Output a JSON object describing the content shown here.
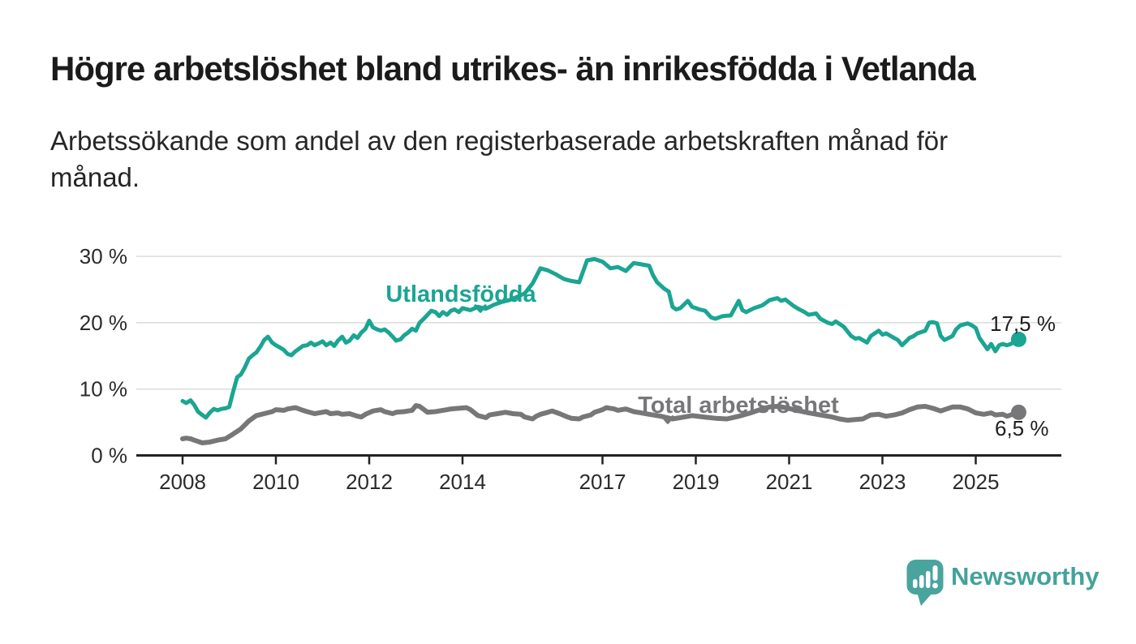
{
  "header": {
    "title": "Högre arbetslöshet bland utrikes- än inrikesfödda i Vetlanda",
    "subtitle": "Arbetssökande som andel av den registerbaserade arbetskraften månad för månad."
  },
  "chart_data": {
    "type": "line",
    "title": "Högre arbetslöshet bland utrikes- än inrikesfödda i Vetlanda",
    "xlabel": "",
    "ylabel": "",
    "unit": "%",
    "grid": true,
    "legend_position": "inline-labels",
    "x_range": [
      2008,
      2025.92
    ],
    "ylim": [
      0,
      32
    ],
    "x_ticks": [
      "2008",
      "2010",
      "2012",
      "2014",
      "2017",
      "2019",
      "2021",
      "2023",
      "2025"
    ],
    "x_tick_years": [
      2008,
      2010,
      2012,
      2014,
      2017,
      2019,
      2021,
      2023,
      2025
    ],
    "y_ticks": [
      "0 %",
      "10 %",
      "20 %",
      "30 %"
    ],
    "y_tick_values": [
      0,
      10,
      20,
      30
    ],
    "series": [
      {
        "name": "Utlandsfödda",
        "color": "#1ba593",
        "final_value": 17.5,
        "final_label": "17,5 %",
        "points": [
          [
            2008.0,
            8.2
          ],
          [
            2008.08,
            7.9
          ],
          [
            2008.17,
            8.3
          ],
          [
            2008.25,
            7.6
          ],
          [
            2008.33,
            6.6
          ],
          [
            2008.42,
            6.1
          ],
          [
            2008.5,
            5.7
          ],
          [
            2008.58,
            6.4
          ],
          [
            2008.67,
            7.0
          ],
          [
            2008.75,
            6.8
          ],
          [
            2008.83,
            7.0
          ],
          [
            2008.92,
            7.1
          ],
          [
            2009.0,
            7.3
          ],
          [
            2009.08,
            9.5
          ],
          [
            2009.17,
            11.8
          ],
          [
            2009.25,
            12.2
          ],
          [
            2009.33,
            13.2
          ],
          [
            2009.42,
            14.6
          ],
          [
            2009.5,
            15.1
          ],
          [
            2009.58,
            15.5
          ],
          [
            2009.67,
            16.4
          ],
          [
            2009.75,
            17.4
          ],
          [
            2009.83,
            17.9
          ],
          [
            2009.92,
            17.0
          ],
          [
            2010.0,
            16.6
          ],
          [
            2010.08,
            16.3
          ],
          [
            2010.17,
            15.9
          ],
          [
            2010.25,
            15.3
          ],
          [
            2010.33,
            15.1
          ],
          [
            2010.42,
            15.7
          ],
          [
            2010.5,
            16.1
          ],
          [
            2010.58,
            16.5
          ],
          [
            2010.67,
            16.6
          ],
          [
            2010.75,
            17.0
          ],
          [
            2010.83,
            16.6
          ],
          [
            2010.92,
            16.9
          ],
          [
            2011.0,
            17.2
          ],
          [
            2011.08,
            16.6
          ],
          [
            2011.17,
            17.0
          ],
          [
            2011.25,
            16.5
          ],
          [
            2011.33,
            17.3
          ],
          [
            2011.42,
            17.9
          ],
          [
            2011.5,
            17.0
          ],
          [
            2011.58,
            17.3
          ],
          [
            2011.67,
            18.1
          ],
          [
            2011.75,
            17.7
          ],
          [
            2011.83,
            18.5
          ],
          [
            2011.92,
            19.1
          ],
          [
            2012.0,
            20.3
          ],
          [
            2012.08,
            19.3
          ],
          [
            2012.17,
            19.0
          ],
          [
            2012.25,
            18.8
          ],
          [
            2012.33,
            19.0
          ],
          [
            2012.42,
            18.5
          ],
          [
            2012.5,
            17.9
          ],
          [
            2012.58,
            17.3
          ],
          [
            2012.67,
            17.5
          ],
          [
            2012.75,
            18.1
          ],
          [
            2012.83,
            18.5
          ],
          [
            2012.92,
            19.1
          ],
          [
            2013.0,
            18.8
          ],
          [
            2013.08,
            20.0
          ],
          [
            2013.17,
            20.6
          ],
          [
            2013.25,
            21.2
          ],
          [
            2013.33,
            21.8
          ],
          [
            2013.42,
            21.6
          ],
          [
            2013.5,
            21.0
          ],
          [
            2013.58,
            21.6
          ],
          [
            2013.67,
            21.2
          ],
          [
            2013.75,
            21.8
          ],
          [
            2013.83,
            22.0
          ],
          [
            2013.92,
            21.6
          ],
          [
            2014.0,
            22.2
          ],
          [
            2014.17,
            21.9
          ],
          [
            2014.33,
            22.4
          ],
          [
            2014.5,
            22.1
          ],
          [
            2014.67,
            22.7
          ],
          [
            2014.83,
            23.1
          ],
          [
            2015.0,
            23.4
          ],
          [
            2015.17,
            23.9
          ],
          [
            2015.33,
            24.4
          ],
          [
            2015.5,
            25.9
          ],
          [
            2015.67,
            28.2
          ],
          [
            2015.83,
            27.9
          ],
          [
            2016.0,
            27.3
          ],
          [
            2016.17,
            26.6
          ],
          [
            2016.33,
            26.3
          ],
          [
            2016.5,
            26.1
          ],
          [
            2016.67,
            29.4
          ],
          [
            2016.83,
            29.6
          ],
          [
            2017.0,
            29.2
          ],
          [
            2017.17,
            28.2
          ],
          [
            2017.33,
            28.4
          ],
          [
            2017.5,
            27.8
          ],
          [
            2017.67,
            29.0
          ],
          [
            2017.83,
            28.8
          ],
          [
            2018.0,
            28.6
          ],
          [
            2018.08,
            27.2
          ],
          [
            2018.17,
            26.1
          ],
          [
            2018.25,
            25.6
          ],
          [
            2018.33,
            25.1
          ],
          [
            2018.42,
            24.7
          ],
          [
            2018.5,
            22.4
          ],
          [
            2018.58,
            22.0
          ],
          [
            2018.67,
            22.2
          ],
          [
            2018.83,
            23.3
          ],
          [
            2018.92,
            22.4
          ],
          [
            2019.08,
            22.0
          ],
          [
            2019.2,
            21.8
          ],
          [
            2019.33,
            20.8
          ],
          [
            2019.42,
            20.6
          ],
          [
            2019.58,
            21.0
          ],
          [
            2019.75,
            21.1
          ],
          [
            2019.92,
            23.3
          ],
          [
            2020.0,
            21.9
          ],
          [
            2020.08,
            21.6
          ],
          [
            2020.25,
            22.2
          ],
          [
            2020.42,
            22.6
          ],
          [
            2020.5,
            23.0
          ],
          [
            2020.58,
            23.4
          ],
          [
            2020.75,
            23.7
          ],
          [
            2020.83,
            23.3
          ],
          [
            2020.92,
            23.5
          ],
          [
            2021.08,
            22.6
          ],
          [
            2021.17,
            22.2
          ],
          [
            2021.33,
            21.6
          ],
          [
            2021.42,
            21.2
          ],
          [
            2021.58,
            21.4
          ],
          [
            2021.67,
            20.6
          ],
          [
            2021.83,
            20.0
          ],
          [
            2021.92,
            19.8
          ],
          [
            2022.0,
            20.2
          ],
          [
            2022.17,
            19.4
          ],
          [
            2022.33,
            18.0
          ],
          [
            2022.42,
            17.6
          ],
          [
            2022.5,
            17.7
          ],
          [
            2022.67,
            17.0
          ],
          [
            2022.75,
            18.0
          ],
          [
            2022.92,
            18.8
          ],
          [
            2023.0,
            18.2
          ],
          [
            2023.08,
            18.4
          ],
          [
            2023.25,
            17.7
          ],
          [
            2023.33,
            17.4
          ],
          [
            2023.42,
            16.6
          ],
          [
            2023.58,
            17.7
          ],
          [
            2023.67,
            18.0
          ],
          [
            2023.75,
            18.4
          ],
          [
            2023.92,
            18.8
          ],
          [
            2024.0,
            20.0
          ],
          [
            2024.08,
            20.1
          ],
          [
            2024.17,
            19.9
          ],
          [
            2024.25,
            18.0
          ],
          [
            2024.33,
            17.4
          ],
          [
            2024.5,
            18.0
          ],
          [
            2024.58,
            19.0
          ],
          [
            2024.67,
            19.6
          ],
          [
            2024.83,
            19.9
          ],
          [
            2024.92,
            19.6
          ],
          [
            2025.0,
            19.2
          ],
          [
            2025.08,
            17.7
          ],
          [
            2025.17,
            16.8
          ],
          [
            2025.25,
            16.0
          ],
          [
            2025.33,
            16.8
          ],
          [
            2025.42,
            15.7
          ],
          [
            2025.5,
            16.6
          ],
          [
            2025.58,
            16.8
          ],
          [
            2025.67,
            16.6
          ],
          [
            2025.75,
            16.8
          ],
          [
            2025.92,
            17.5
          ]
        ]
      },
      {
        "name": "Total arbetslöshet",
        "color": "#77777a",
        "final_value": 6.5,
        "final_label": "6,5 %",
        "points": [
          [
            2008.0,
            2.5
          ],
          [
            2008.08,
            2.6
          ],
          [
            2008.17,
            2.5
          ],
          [
            2008.25,
            2.3
          ],
          [
            2008.42,
            1.9
          ],
          [
            2008.58,
            2.0
          ],
          [
            2008.75,
            2.3
          ],
          [
            2008.92,
            2.5
          ],
          [
            2009.08,
            3.2
          ],
          [
            2009.25,
            4.0
          ],
          [
            2009.42,
            5.2
          ],
          [
            2009.58,
            6.0
          ],
          [
            2009.75,
            6.3
          ],
          [
            2009.92,
            6.6
          ],
          [
            2010.0,
            6.9
          ],
          [
            2010.17,
            6.8
          ],
          [
            2010.25,
            7.0
          ],
          [
            2010.42,
            7.2
          ],
          [
            2010.58,
            6.8
          ],
          [
            2010.67,
            6.6
          ],
          [
            2010.83,
            6.3
          ],
          [
            2010.92,
            6.4
          ],
          [
            2011.08,
            6.6
          ],
          [
            2011.17,
            6.3
          ],
          [
            2011.33,
            6.4
          ],
          [
            2011.42,
            6.2
          ],
          [
            2011.58,
            6.3
          ],
          [
            2011.75,
            5.9
          ],
          [
            2011.83,
            5.8
          ],
          [
            2011.92,
            6.2
          ],
          [
            2012.08,
            6.7
          ],
          [
            2012.25,
            6.9
          ],
          [
            2012.33,
            6.6
          ],
          [
            2012.5,
            6.3
          ],
          [
            2012.58,
            6.5
          ],
          [
            2012.75,
            6.6
          ],
          [
            2012.92,
            6.8
          ],
          [
            2013.0,
            7.5
          ],
          [
            2013.08,
            7.4
          ],
          [
            2013.25,
            6.5
          ],
          [
            2013.42,
            6.6
          ],
          [
            2013.5,
            6.7
          ],
          [
            2013.67,
            6.9
          ],
          [
            2013.75,
            7.0
          ],
          [
            2013.92,
            7.1
          ],
          [
            2014.08,
            7.2
          ],
          [
            2014.17,
            6.9
          ],
          [
            2014.33,
            6.0
          ],
          [
            2014.5,
            5.7
          ],
          [
            2014.58,
            6.1
          ],
          [
            2014.75,
            6.3
          ],
          [
            2014.92,
            6.5
          ],
          [
            2015.08,
            6.3
          ],
          [
            2015.25,
            6.2
          ],
          [
            2015.33,
            5.8
          ],
          [
            2015.5,
            5.5
          ],
          [
            2015.58,
            5.9
          ],
          [
            2015.67,
            6.2
          ],
          [
            2015.83,
            6.5
          ],
          [
            2015.92,
            6.7
          ],
          [
            2016.08,
            6.3
          ],
          [
            2016.25,
            5.8
          ],
          [
            2016.33,
            5.6
          ],
          [
            2016.5,
            5.5
          ],
          [
            2016.58,
            5.8
          ],
          [
            2016.75,
            6.1
          ],
          [
            2016.83,
            6.5
          ],
          [
            2017.0,
            6.9
          ],
          [
            2017.08,
            7.2
          ],
          [
            2017.25,
            7.0
          ],
          [
            2017.33,
            6.8
          ],
          [
            2017.5,
            7.0
          ],
          [
            2017.67,
            6.6
          ],
          [
            2017.83,
            6.4
          ],
          [
            2018.0,
            6.2
          ],
          [
            2018.25,
            5.9
          ],
          [
            2018.5,
            5.5
          ],
          [
            2018.67,
            5.7
          ],
          [
            2018.92,
            6.0
          ],
          [
            2019.17,
            5.8
          ],
          [
            2019.42,
            5.6
          ],
          [
            2019.67,
            5.5
          ],
          [
            2019.92,
            5.9
          ],
          [
            2020.17,
            6.4
          ],
          [
            2020.42,
            7.0
          ],
          [
            2020.58,
            7.3
          ],
          [
            2020.75,
            7.4
          ],
          [
            2020.92,
            7.2
          ],
          [
            2021.17,
            6.8
          ],
          [
            2021.42,
            6.4
          ],
          [
            2021.67,
            6.1
          ],
          [
            2021.92,
            5.8
          ],
          [
            2022.08,
            5.5
          ],
          [
            2022.25,
            5.3
          ],
          [
            2022.42,
            5.4
          ],
          [
            2022.58,
            5.5
          ],
          [
            2022.75,
            6.1
          ],
          [
            2022.92,
            6.2
          ],
          [
            2023.08,
            5.9
          ],
          [
            2023.25,
            6.1
          ],
          [
            2023.42,
            6.4
          ],
          [
            2023.58,
            6.9
          ],
          [
            2023.75,
            7.3
          ],
          [
            2023.92,
            7.4
          ],
          [
            2024.08,
            7.1
          ],
          [
            2024.25,
            6.7
          ],
          [
            2024.33,
            6.9
          ],
          [
            2024.5,
            7.3
          ],
          [
            2024.67,
            7.3
          ],
          [
            2024.83,
            7.0
          ],
          [
            2025.0,
            6.4
          ],
          [
            2025.17,
            6.2
          ],
          [
            2025.33,
            6.4
          ],
          [
            2025.42,
            6.1
          ],
          [
            2025.58,
            6.2
          ],
          [
            2025.67,
            5.9
          ],
          [
            2025.92,
            6.5
          ]
        ]
      }
    ]
  },
  "branding": {
    "logo_text": "Newsworthy",
    "logo_color": "#44a29b",
    "logo_icon": "bar-chart-speech-bubble-icon"
  }
}
